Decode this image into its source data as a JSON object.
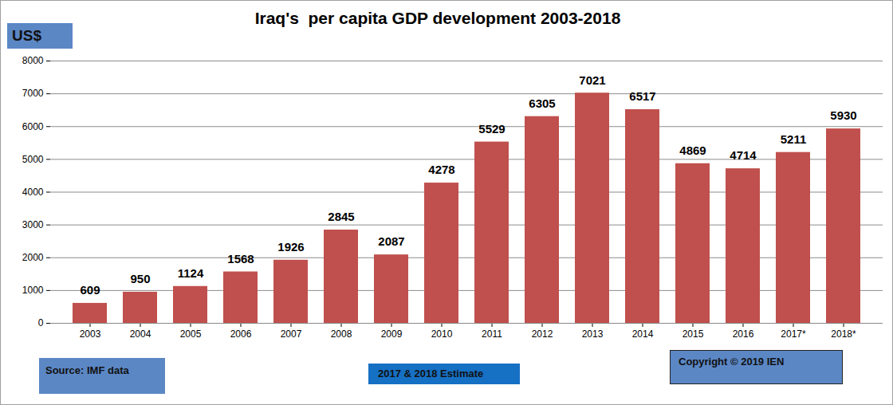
{
  "chart_data": {
    "type": "bar",
    "title": "Iraq's  per capita GDP development 2003-2018",
    "ylabel": "US$",
    "annotations": [
      "Source: IMF data",
      "2017 & 2018 Estimate",
      "Copyright © 2019 IEN"
    ],
    "categories": [
      "2003",
      "2004",
      "2005",
      "2006",
      "2007",
      "2008",
      "2009",
      "2010",
      "2011",
      "2012",
      "2013",
      "2014",
      "2015",
      "2016",
      "2017*",
      "2018*"
    ],
    "values": [
      609,
      950,
      1124,
      1568,
      1926,
      2845,
      2087,
      4278,
      5529,
      6305,
      7021,
      6517,
      4869,
      4714,
      5211,
      5930
    ],
    "color": "#c0504d",
    "ylim": [
      0,
      8000
    ],
    "yticks": [
      0,
      1000,
      2000,
      3000,
      4000,
      5000,
      6000,
      7000,
      8000
    ],
    "grid": true,
    "data_labels": true
  }
}
